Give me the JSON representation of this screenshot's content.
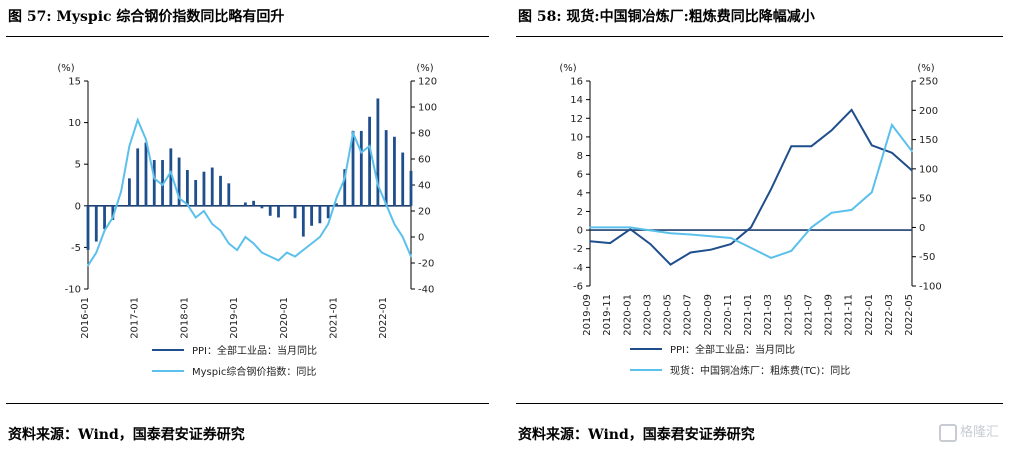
{
  "left": {
    "title": "图 57: Myspic 综合钢价指数同比略有回升",
    "source": "资料来源：Wind，国泰君安证券研究",
    "chart_data": {
      "type": "bar+line",
      "left_axis": {
        "unit": "(%)",
        "ylim": [
          -10,
          15
        ],
        "ticks": [
          -10,
          -5,
          0,
          5,
          10,
          15
        ]
      },
      "right_axis": {
        "unit": "(%)",
        "ylim": [
          -40,
          120
        ],
        "ticks": [
          -40,
          -20,
          0,
          20,
          40,
          60,
          80,
          100,
          120
        ]
      },
      "x_ticks": [
        "2016-01",
        "2017-01",
        "2018-01",
        "2019-01",
        "2020-01",
        "2021-01",
        "2022-01"
      ],
      "x_range": [
        "2016-01",
        "2022-07"
      ],
      "series": [
        {
          "name": "PPI：全部工业品：当月同比",
          "kind": "bar",
          "axis": "left",
          "color": "#1f4e8c",
          "x": [
            "2016-01",
            "2016-03",
            "2016-05",
            "2016-07",
            "2016-09",
            "2016-11",
            "2017-01",
            "2017-03",
            "2017-05",
            "2017-07",
            "2017-09",
            "2017-11",
            "2018-01",
            "2018-03",
            "2018-05",
            "2018-07",
            "2018-09",
            "2018-11",
            "2019-01",
            "2019-03",
            "2019-05",
            "2019-07",
            "2019-09",
            "2019-11",
            "2020-01",
            "2020-03",
            "2020-05",
            "2020-07",
            "2020-09",
            "2020-11",
            "2021-01",
            "2021-03",
            "2021-05",
            "2021-07",
            "2021-09",
            "2021-11",
            "2022-01",
            "2022-03",
            "2022-05",
            "2022-07"
          ],
          "values": [
            -5.3,
            -4.3,
            -2.8,
            -1.7,
            0.1,
            3.3,
            6.9,
            7.6,
            5.5,
            5.5,
            6.9,
            5.8,
            4.3,
            3.1,
            4.1,
            4.6,
            3.6,
            2.7,
            0.1,
            0.4,
            0.6,
            -0.3,
            -1.2,
            -1.4,
            0.1,
            -1.5,
            -3.7,
            -2.4,
            -2.1,
            -1.5,
            0.3,
            4.4,
            9.0,
            9.0,
            10.7,
            12.9,
            9.1,
            8.3,
            6.4,
            4.2
          ]
        },
        {
          "name": "Myspic综合钢价指数：同比",
          "kind": "line",
          "axis": "right",
          "color": "#5bc0eb",
          "x": [
            "2016-01",
            "2016-03",
            "2016-05",
            "2016-07",
            "2016-09",
            "2016-11",
            "2017-01",
            "2017-03",
            "2017-05",
            "2017-07",
            "2017-09",
            "2017-11",
            "2018-01",
            "2018-03",
            "2018-05",
            "2018-07",
            "2018-09",
            "2018-11",
            "2019-01",
            "2019-03",
            "2019-05",
            "2019-07",
            "2019-09",
            "2019-11",
            "2020-01",
            "2020-03",
            "2020-05",
            "2020-07",
            "2020-09",
            "2020-11",
            "2021-01",
            "2021-03",
            "2021-05",
            "2021-07",
            "2021-09",
            "2021-11",
            "2022-01",
            "2022-03",
            "2022-05",
            "2022-07"
          ],
          "values": [
            -22,
            -12,
            5,
            15,
            35,
            70,
            90,
            75,
            45,
            40,
            50,
            30,
            25,
            15,
            20,
            10,
            5,
            -5,
            -10,
            0,
            -5,
            -12,
            -15,
            -18,
            -12,
            -15,
            -10,
            -5,
            0,
            10,
            30,
            45,
            80,
            65,
            70,
            40,
            25,
            10,
            0,
            -15
          ]
        }
      ]
    }
  },
  "right": {
    "title": "图 58: 现货:中国铜冶炼厂:粗炼费同比降幅减小",
    "source": "资料来源：Wind，国泰君安证券研究",
    "chart_data": {
      "type": "line+line",
      "left_axis": {
        "unit": "(%)",
        "ylim": [
          -6,
          16
        ],
        "ticks": [
          -6,
          -4,
          -2,
          0,
          2,
          4,
          6,
          8,
          10,
          12,
          14,
          16
        ]
      },
      "right_axis": {
        "unit": "(%)",
        "ylim": [
          -100,
          250
        ],
        "ticks": [
          -100,
          -50,
          0,
          50,
          100,
          150,
          200,
          250
        ]
      },
      "x_ticks": [
        "2019-09",
        "2019-11",
        "2020-01",
        "2020-03",
        "2020-05",
        "2020-07",
        "2020-09",
        "2020-11",
        "2021-01",
        "2021-03",
        "2021-05",
        "2021-07",
        "2021-09",
        "2021-11",
        "2022-01",
        "2022-03",
        "2022-05"
      ],
      "x_range": [
        "2019-09",
        "2022-05"
      ],
      "series": [
        {
          "name": "PPI：全部工业品：当月同比",
          "kind": "line",
          "axis": "left",
          "color": "#1f4e8c",
          "x": [
            "2019-09",
            "2019-11",
            "2020-01",
            "2020-03",
            "2020-05",
            "2020-07",
            "2020-09",
            "2020-11",
            "2021-01",
            "2021-03",
            "2021-05",
            "2021-07",
            "2021-09",
            "2021-11",
            "2022-01",
            "2022-03",
            "2022-05"
          ],
          "values": [
            -1.2,
            -1.4,
            0.1,
            -1.5,
            -3.7,
            -2.4,
            -2.1,
            -1.5,
            0.3,
            4.4,
            9.0,
            9.0,
            10.7,
            12.9,
            9.1,
            8.3,
            6.4
          ]
        },
        {
          "name": "现货：中国铜冶炼厂：粗炼费(TC)：同比",
          "kind": "line",
          "axis": "right",
          "color": "#5bc0eb",
          "x": [
            "2019-09",
            "2019-11",
            "2020-01",
            "2020-03",
            "2020-05",
            "2020-07",
            "2020-09",
            "2020-11",
            "2021-01",
            "2021-03",
            "2021-05",
            "2021-07",
            "2021-09",
            "2021-11",
            "2022-01",
            "2022-03",
            "2022-05"
          ],
          "values": [
            0,
            0,
            0,
            -5,
            -10,
            -12,
            -15,
            -18,
            -35,
            -52,
            -40,
            0,
            25,
            30,
            60,
            175,
            130
          ]
        }
      ]
    }
  },
  "watermark": "格隆汇"
}
